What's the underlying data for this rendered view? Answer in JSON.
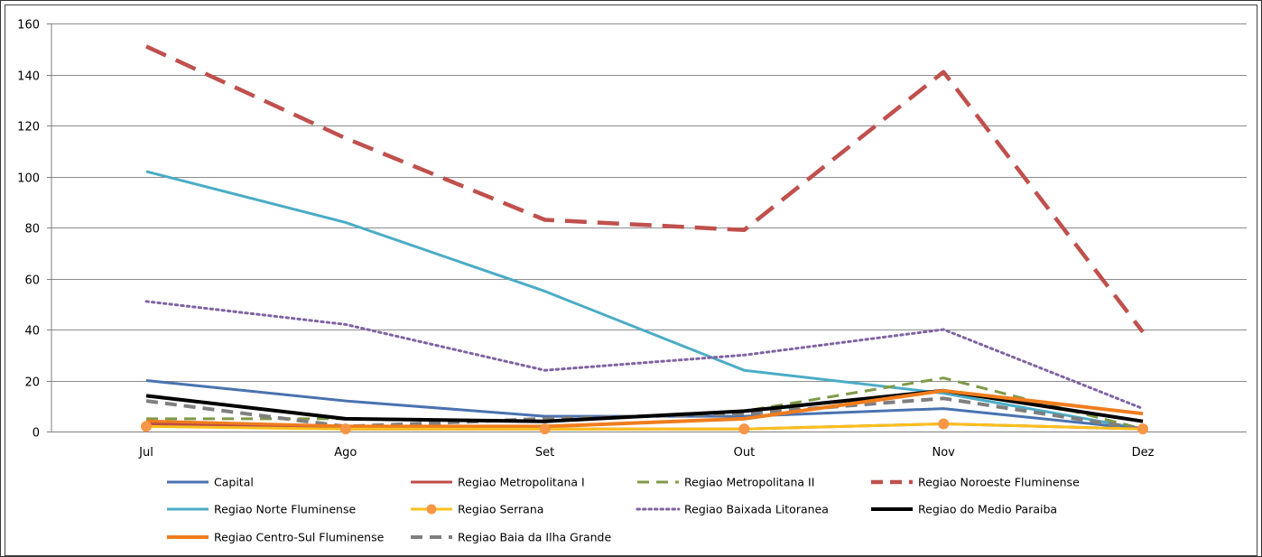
{
  "chart_data": {
    "type": "line",
    "title": "",
    "xlabel": "",
    "ylabel": "",
    "categories": [
      "Jul",
      "Ago",
      "Set",
      "Out",
      "Nov",
      "Dez"
    ],
    "ylim": [
      0,
      160
    ],
    "yticks": [
      "0",
      "20",
      "40",
      "60",
      "80",
      "100",
      "120",
      "140",
      "160"
    ],
    "grid": true,
    "legend_position": "bottom",
    "series": [
      {
        "name": "Capital",
        "values": [
          20,
          12,
          6,
          6,
          9,
          1
        ],
        "color": "#4a72b0",
        "style": "solid",
        "width": 3
      },
      {
        "name": "Regiao Metropolitana I",
        "values": [
          3,
          1,
          1,
          1,
          3,
          1
        ],
        "color": "#be4b48",
        "style": "solid",
        "width": 3
      },
      {
        "name": "Regiao Metropolitana II",
        "values": [
          5,
          5,
          4,
          8,
          21,
          1
        ],
        "color": "#7f9a48",
        "style": "dashed",
        "width": 3
      },
      {
        "name": "Regiao Noroeste Fluminense",
        "values": [
          151,
          115,
          83,
          79,
          141,
          39
        ],
        "color": "#c0504d",
        "style": "bigdash",
        "width": 4.5
      },
      {
        "name": "Regiao Norte Fluminense",
        "values": [
          102,
          82,
          55,
          24,
          15,
          1
        ],
        "color": "#4bacc6",
        "style": "solid",
        "width": 3
      },
      {
        "name": "Regiao Serrana",
        "values": [
          2,
          1,
          1,
          1,
          3,
          1
        ],
        "color": "#fac01b",
        "style": "marker",
        "width": 3,
        "marker_color": "#f79646"
      },
      {
        "name": "Regiao Baixada Litoranea",
        "values": [
          51,
          42,
          24,
          30,
          40,
          9
        ],
        "color": "#8064a2",
        "style": "dotted",
        "width": 3
      },
      {
        "name": "Regiao do Medio Paraiba",
        "values": [
          14,
          5,
          4,
          8,
          16,
          4
        ],
        "color": "#000000",
        "style": "solid",
        "width": 4
      },
      {
        "name": "Regiao Centro-Sul Fluminense",
        "values": [
          4,
          2,
          2,
          5,
          16,
          7
        ],
        "color": "#f07d1e",
        "style": "solid",
        "width": 4
      },
      {
        "name": "Regiao Baia da Ilha Grande",
        "values": [
          12,
          2,
          5,
          7,
          13,
          1
        ],
        "color": "#7f7f7f",
        "style": "dashed",
        "width": 4
      }
    ]
  }
}
